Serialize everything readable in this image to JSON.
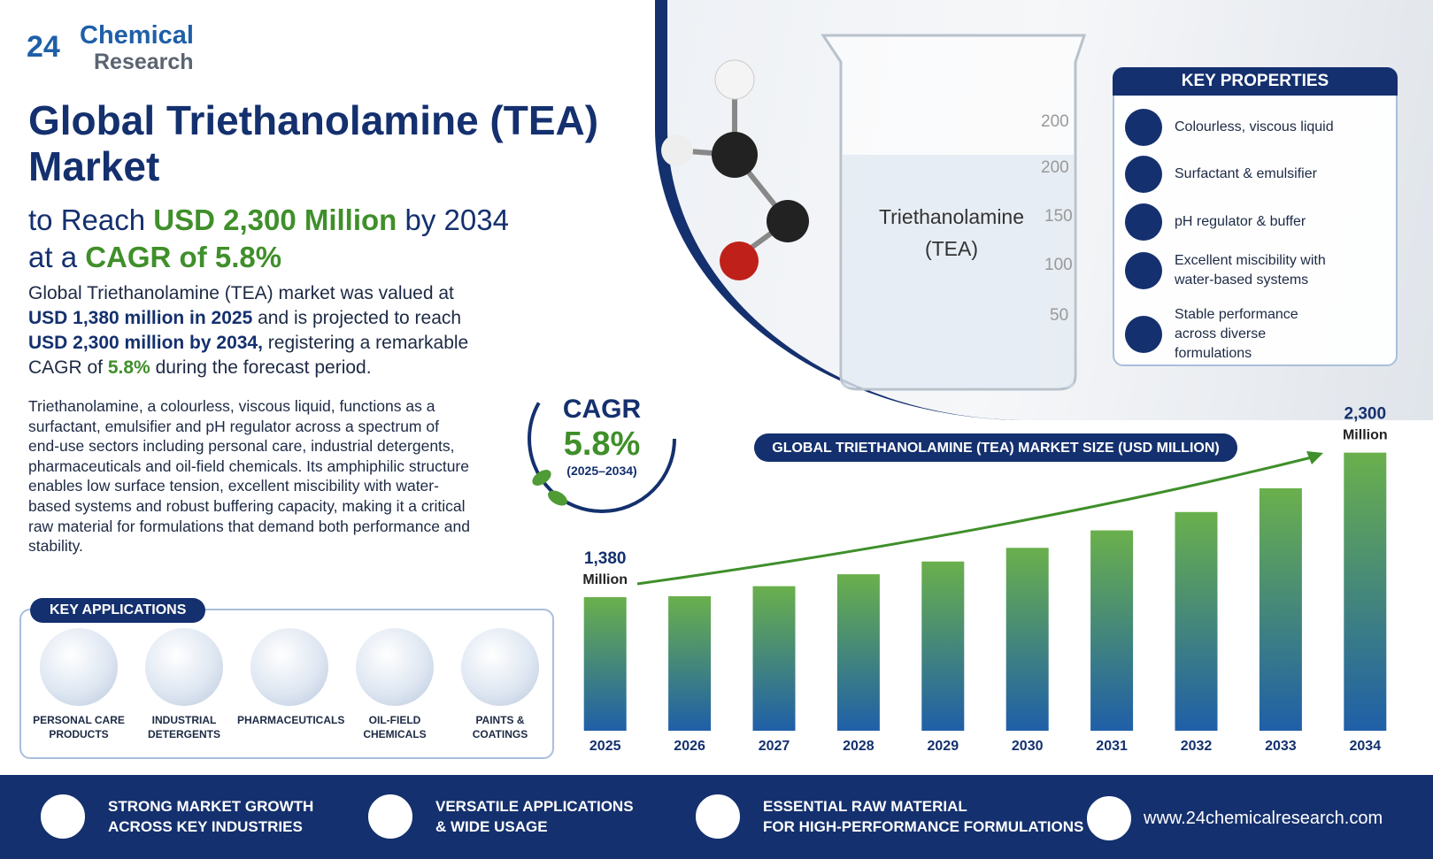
{
  "header": {
    "logo": {
      "number": "24",
      "line1": "Chemical",
      "line2": "Research"
    },
    "title_lines": [
      "Global Triethanolamine (TEA)",
      "Market"
    ],
    "subtitle_line1": [
      "to Reach ",
      "USD 2,300 Million",
      " by 2034"
    ],
    "subtitle_line2": [
      "at a ",
      "CAGR of 5.8%"
    ]
  },
  "summary": [
    "Global Triethanolamine (TEA) market was valued at ",
    "USD 1,380 million in 2025",
    " and is projected to reach ",
    "USD 2,300 million by 2034,",
    " registering a remarkable CAGR of ",
    "5.8%",
    " during the forecast period."
  ],
  "description": "Triethanolamine, a colourless, viscous liquid, functions as a surfactant, emulsifier and pH regulator across a spectrum of end-use sectors including personal care, industrial detergents, pharmaceuticals and oil-field chemicals. Its amphiphilic structure enables low surface tension, excellent miscibility with water-based systems and robust buffering capacity, making it a critical raw material for formulations that demand both performance and stability.",
  "beaker": {
    "label_lines": [
      "Triethanolamine",
      "(TEA)"
    ],
    "scale": [
      "200",
      "200",
      "150",
      "100",
      "50"
    ]
  },
  "key_properties": {
    "title": "KEY PROPERTIES",
    "items": [
      "Colourless, viscous liquid",
      "Surfactant & emulsifier",
      "pH regulator & buffer",
      "Excellent miscibility with water-based systems",
      "Stable performance across diverse formulations"
    ]
  },
  "cagr_badge": {
    "label": "CAGR",
    "value": "5.8%",
    "period": "(2025–2034)"
  },
  "chart_data": {
    "type": "bar",
    "title": "GLOBAL TRIETHANOLAMINE (TEA) MARKET SIZE (USD MILLION)",
    "categories": [
      "2025",
      "2026",
      "2027",
      "2028",
      "2029",
      "2030",
      "2031",
      "2032",
      "2033",
      "2034"
    ],
    "values": [
      1380,
      1386,
      1450,
      1526,
      1607,
      1694,
      1805,
      1922,
      2073,
      2300
    ],
    "value_labels": [
      "1,380",
      null,
      null,
      null,
      null,
      null,
      null,
      null,
      null,
      "2,300"
    ],
    "value_label_unit": "Million",
    "ylim": [
      530,
      2450
    ],
    "colors": [
      "#6ab04c",
      "#1f5fa8"
    ]
  },
  "key_applications": {
    "title": "KEY APPLICATIONS",
    "items": [
      [
        "PERSONAL CARE",
        "PRODUCTS"
      ],
      [
        "INDUSTRIAL",
        "DETERGENTS"
      ],
      [
        "PHARMACEUTICALS"
      ],
      [
        "OIL-FIELD",
        "CHEMICALS"
      ],
      [
        "PAINTS &",
        "COATINGS"
      ]
    ]
  },
  "footer": {
    "items": [
      [
        "STRONG MARKET GROWTH",
        "ACROSS KEY INDUSTRIES"
      ],
      [
        "VERSATILE APPLICATIONS",
        "& WIDE USAGE"
      ],
      [
        "ESSENTIAL RAW MATERIAL",
        "FOR HIGH-PERFORMANCE FORMULATIONS"
      ]
    ],
    "website": "www.24chemicalresearch.com"
  }
}
